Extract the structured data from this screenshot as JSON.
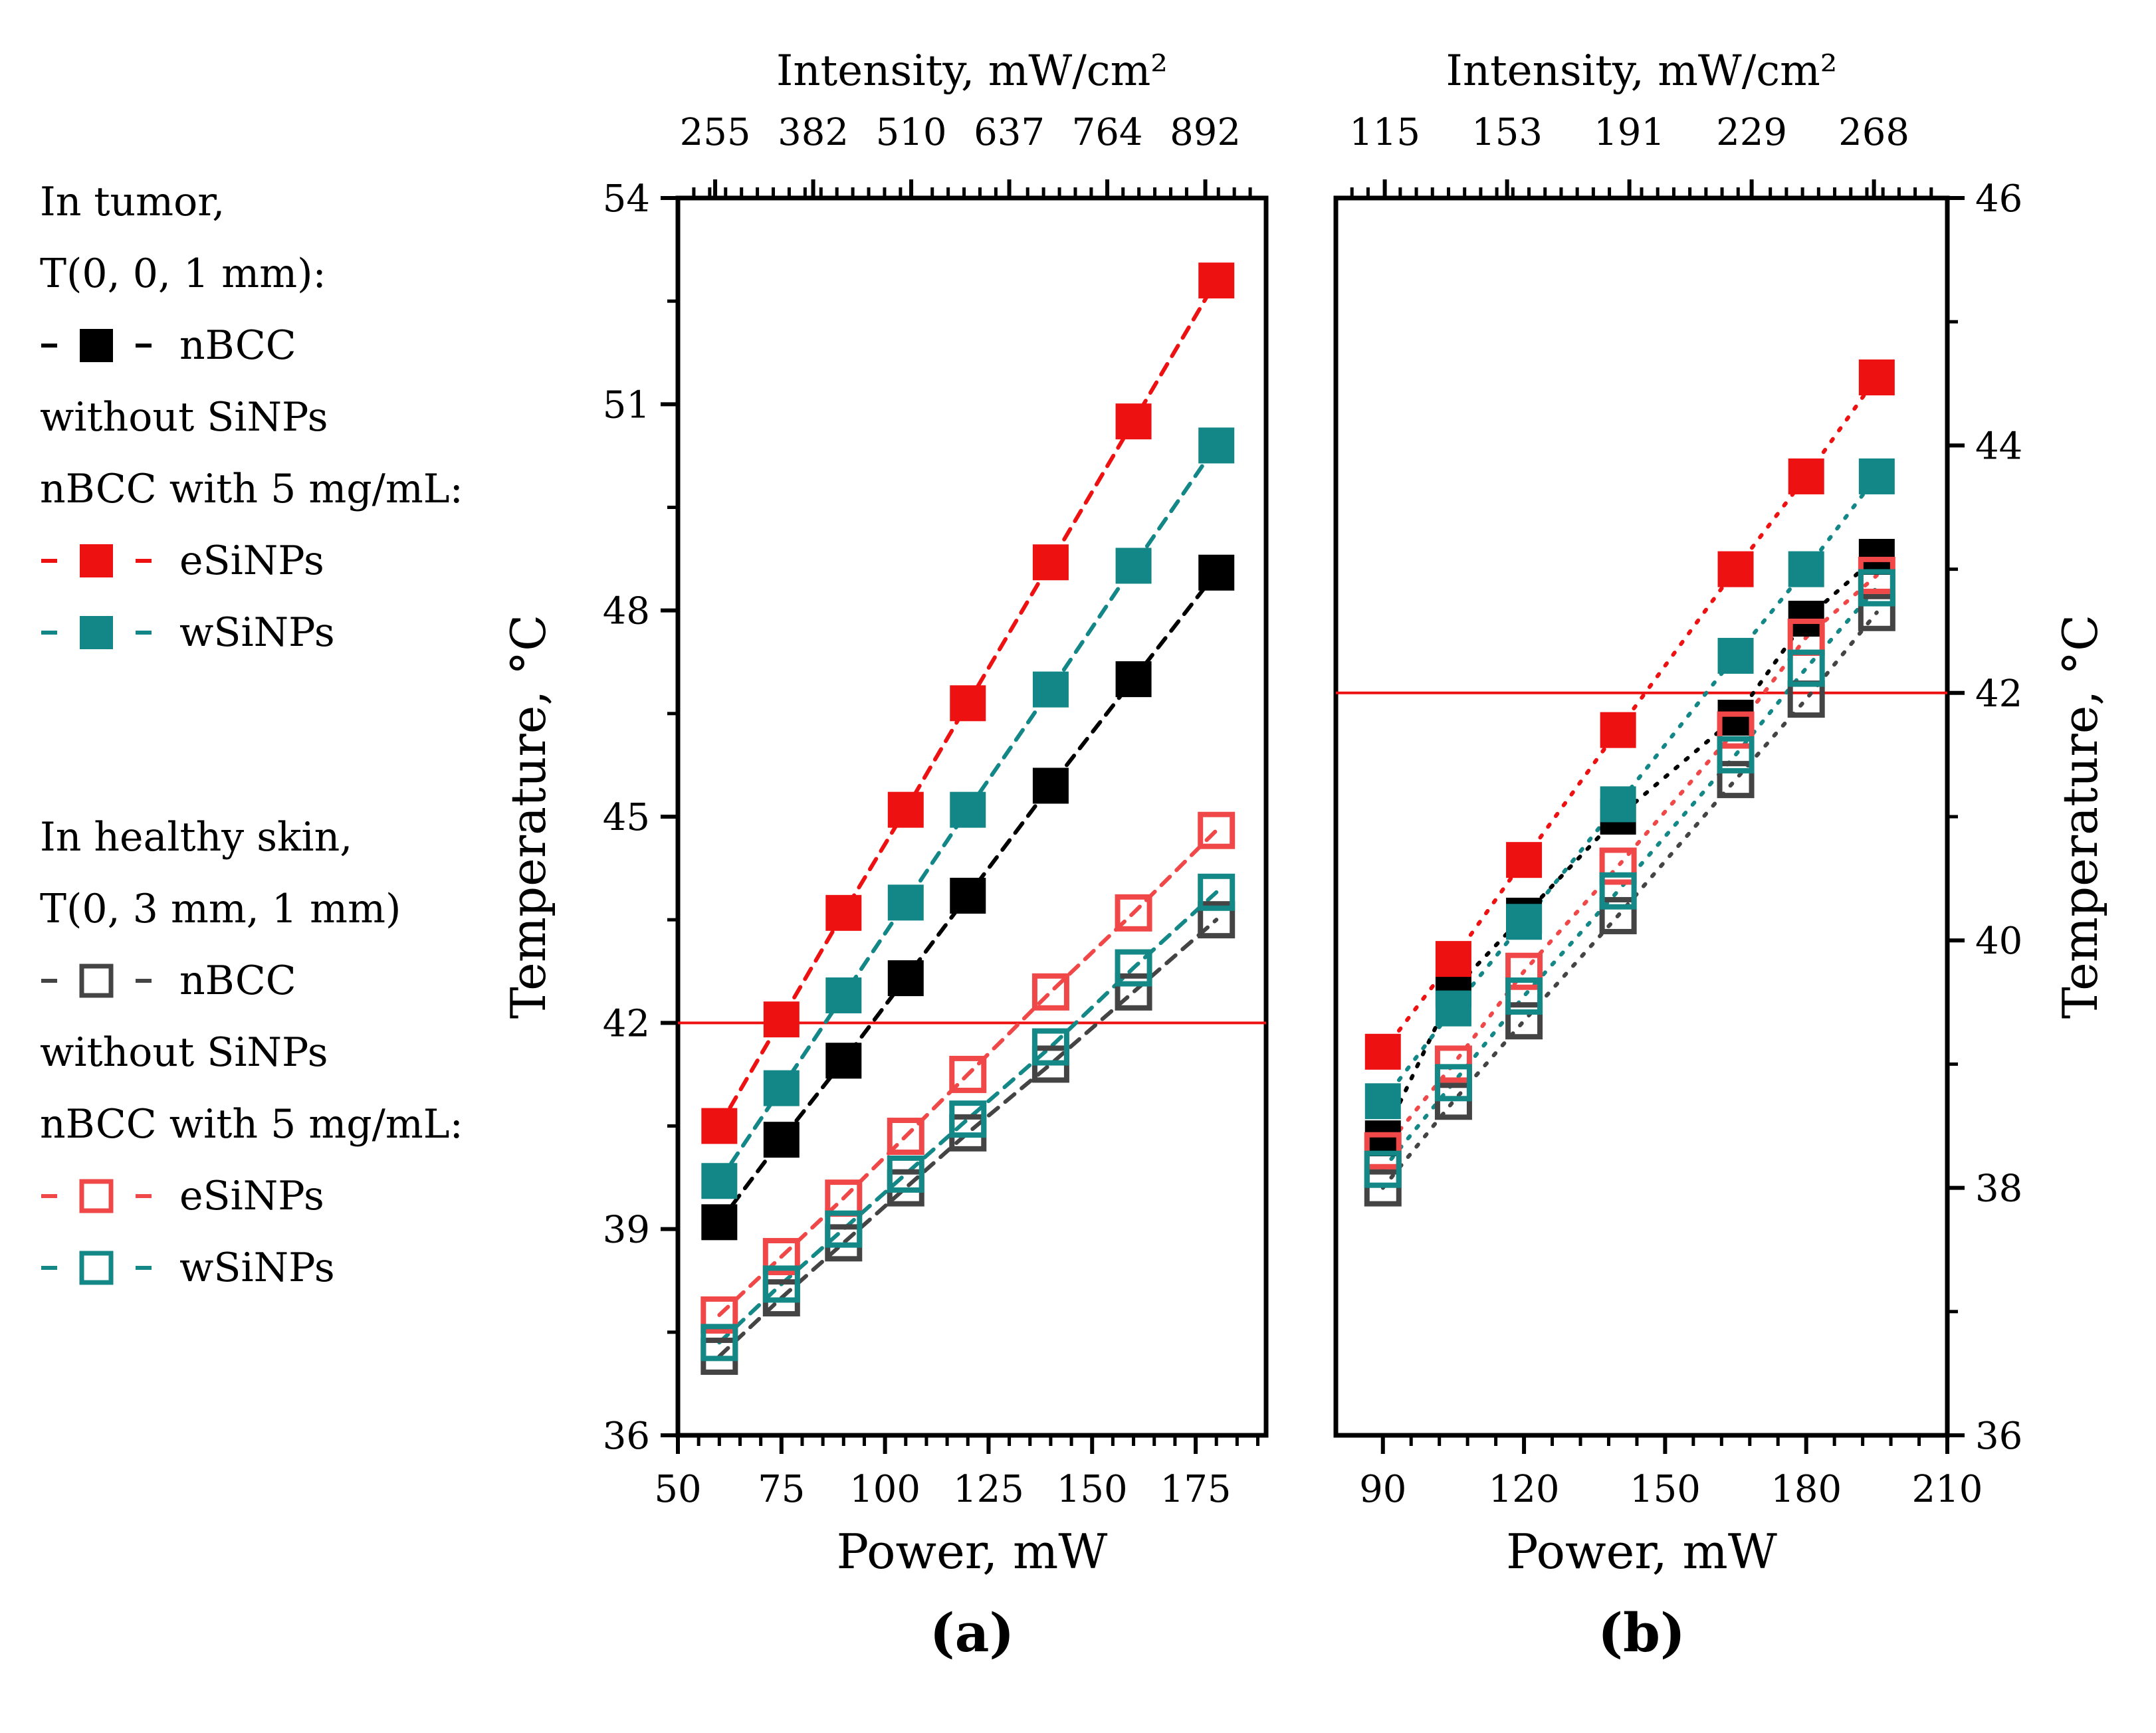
{
  "colors": {
    "nBCC": "#000000",
    "eSiNPs": "#ee1111",
    "wSiNPs": "#138787",
    "healthy_nBCC": "#444444",
    "healthy_eSiNPs": "#f04848",
    "healthy_wSiNPs": "#148787",
    "threshold": "#ee1111"
  },
  "legend": {
    "tumor_title_1": "In tumor,",
    "tumor_title_2": "T(0, 0, 1 mm):",
    "tumor_nbcc": "nBCC",
    "tumor_without": "without SiNPs",
    "tumor_with": "nBCC with 5 mg/mL:",
    "tumor_e": "eSiNPs",
    "tumor_w": "wSiNPs",
    "healthy_title_1": "In healthy skin,",
    "healthy_title_2": "T(0, 3 mm, 1 mm)",
    "healthy_nbcc": "nBCC",
    "healthy_without": "without SiNPs",
    "healthy_with": "nBCC with 5 mg/mL:",
    "healthy_e": "eSiNPs",
    "healthy_w": "wSiNPs"
  },
  "chart_data": [
    {
      "type": "scatter",
      "panel_label": "(a)",
      "xlabel": "Power, mW",
      "ylabel": "Temperature, °C",
      "x2label": "Intensity, mW/cm²",
      "xlim": [
        50,
        192
      ],
      "ylim": [
        36,
        54
      ],
      "xticks": [
        50,
        75,
        100,
        125,
        150,
        175
      ],
      "yticks": [
        36,
        39,
        42,
        45,
        48,
        51,
        54
      ],
      "x2ticks": [
        255,
        382,
        510,
        637,
        764,
        892
      ],
      "threshold": 42,
      "x": [
        60,
        75,
        90,
        105,
        120,
        140,
        160,
        180
      ],
      "series": [
        {
          "name": "nBCC without SiNPs (tumor)",
          "key": "nBCC",
          "filled": true,
          "values": [
            39.1,
            40.3,
            41.45,
            42.65,
            43.85,
            45.45,
            47.0,
            48.55
          ]
        },
        {
          "name": "eSiNPs (tumor)",
          "key": "eSiNPs",
          "filled": true,
          "values": [
            40.5,
            42.05,
            43.6,
            45.1,
            46.65,
            48.7,
            50.75,
            52.8
          ]
        },
        {
          "name": "wSiNPs (tumor)",
          "key": "wSiNPs",
          "filled": true,
          "values": [
            39.7,
            41.05,
            42.4,
            43.75,
            45.1,
            46.85,
            48.65,
            50.4
          ]
        },
        {
          "name": "nBCC without SiNPs (healthy skin)",
          "key": "healthy_nBCC",
          "filled": false,
          "values": [
            37.15,
            38.0,
            38.8,
            39.6,
            40.4,
            41.4,
            42.45,
            43.5
          ]
        },
        {
          "name": "eSiNPs (healthy skin)",
          "key": "healthy_eSiNPs",
          "filled": false,
          "values": [
            37.75,
            38.6,
            39.45,
            40.35,
            41.25,
            42.45,
            43.6,
            44.8
          ]
        },
        {
          "name": "wSiNPs (healthy skin)",
          "key": "healthy_wSiNPs",
          "filled": false,
          "values": [
            37.35,
            38.2,
            39.0,
            39.8,
            40.6,
            41.65,
            42.8,
            43.9
          ]
        }
      ]
    },
    {
      "type": "scatter",
      "panel_label": "(b)",
      "xlabel": "Power, mW",
      "ylabel": "Temperature, °C",
      "x2label": "Intensity, mW/cm²",
      "xlim": [
        80,
        210
      ],
      "ylim": [
        36,
        46
      ],
      "xticks": [
        90,
        120,
        150,
        180,
        210
      ],
      "yticks": [
        36,
        38,
        40,
        42,
        44,
        46
      ],
      "x2ticks": [
        115,
        153,
        191,
        229,
        268
      ],
      "threshold": 42,
      "x": [
        90,
        105,
        120,
        140,
        165,
        180,
        195
      ],
      "series": [
        {
          "name": "nBCC without SiNPs (tumor)",
          "key": "nBCC",
          "filled": true,
          "values": [
            38.4,
            39.6,
            40.2,
            41.0,
            41.8,
            42.6,
            43.1
          ]
        },
        {
          "name": "eSiNPs (tumor)",
          "key": "eSiNPs",
          "filled": true,
          "values": [
            39.1,
            39.85,
            40.65,
            41.7,
            43.0,
            43.75,
            44.55
          ]
        },
        {
          "name": "wSiNPs (tumor)",
          "key": "wSiNPs",
          "filled": true,
          "values": [
            38.7,
            39.45,
            40.15,
            41.1,
            42.3,
            43.0,
            43.75
          ]
        },
        {
          "name": "nBCC without SiNPs (healthy skin)",
          "key": "healthy_nBCC",
          "filled": false,
          "values": [
            38.0,
            38.7,
            39.35,
            40.2,
            41.3,
            41.95,
            42.65
          ]
        },
        {
          "name": "eSiNPs (healthy skin)",
          "key": "healthy_eSiNPs",
          "filled": false,
          "values": [
            38.3,
            39.0,
            39.75,
            40.6,
            41.7,
            42.45,
            42.95
          ]
        },
        {
          "name": "wSiNPs (healthy skin)",
          "key": "healthy_wSiNPs",
          "filled": false,
          "values": [
            38.15,
            38.85,
            39.55,
            40.4,
            41.5,
            42.2,
            42.85
          ]
        }
      ]
    }
  ]
}
